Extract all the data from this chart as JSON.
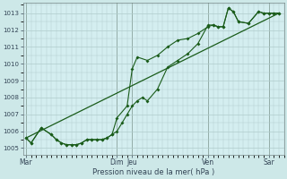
{
  "background_color": "#cde8e8",
  "plot_bg_color": "#d4eef0",
  "grid_color": "#b0cccc",
  "vline_color": "#556655",
  "line_color": "#1a5c1a",
  "xlabel": "Pression niveau de la mer( hPa )",
  "ylim": [
    1004.6,
    1013.6
  ],
  "yticks": [
    1005,
    1006,
    1007,
    1008,
    1009,
    1010,
    1011,
    1012,
    1013
  ],
  "day_labels": [
    "Mar",
    "Dim",
    "Jeu",
    "Ven",
    "Sar"
  ],
  "day_positions": [
    0,
    9,
    10.5,
    18,
    24
  ],
  "xlim": [
    -0.3,
    25.5
  ],
  "total_points": 26,
  "series1_x": [
    0,
    0.5,
    1.5,
    2.5,
    3,
    3.5,
    4,
    4.5,
    5,
    5.5,
    6,
    6.5,
    7,
    7.5,
    8,
    8.5,
    9,
    9.5,
    10,
    10.5,
    11,
    11.5,
    12,
    13,
    14,
    15,
    16,
    17,
    18,
    18.5,
    19,
    19.5,
    20,
    20.5,
    21,
    22,
    23,
    23.5,
    24,
    24.5,
    25
  ],
  "series1_y": [
    1005.6,
    1005.3,
    1006.2,
    1005.8,
    1005.5,
    1005.3,
    1005.2,
    1005.2,
    1005.2,
    1005.3,
    1005.5,
    1005.5,
    1005.5,
    1005.5,
    1005.6,
    1005.8,
    1006.0,
    1006.5,
    1007.0,
    1007.5,
    1007.8,
    1008.0,
    1007.8,
    1008.5,
    1009.8,
    1010.2,
    1010.6,
    1011.2,
    1012.3,
    1012.3,
    1012.2,
    1012.2,
    1013.3,
    1013.1,
    1012.5,
    1012.4,
    1013.1,
    1013.0,
    1013.0,
    1013.0,
    1013.0
  ],
  "series2_x": [
    0,
    0.5,
    1.5,
    2.5,
    3,
    3.5,
    4,
    4.5,
    5,
    5.5,
    6,
    6.5,
    7,
    7.5,
    8,
    8.5,
    9,
    10,
    10.5,
    11,
    12,
    13,
    14,
    15,
    16,
    17,
    18,
    18.5,
    19,
    19.5,
    20,
    20.5,
    21,
    22,
    23,
    23.5,
    24,
    24.5,
    25
  ],
  "series2_y": [
    1005.6,
    1005.3,
    1006.2,
    1005.8,
    1005.5,
    1005.3,
    1005.2,
    1005.2,
    1005.2,
    1005.3,
    1005.5,
    1005.5,
    1005.5,
    1005.5,
    1005.6,
    1005.8,
    1006.8,
    1007.5,
    1009.7,
    1010.4,
    1010.2,
    1010.5,
    1011.0,
    1011.4,
    1011.5,
    1011.8,
    1012.2,
    1012.3,
    1012.2,
    1012.2,
    1013.3,
    1013.1,
    1012.5,
    1012.4,
    1013.1,
    1013.0,
    1013.0,
    1013.0,
    1013.0
  ],
  "trend_x": [
    0,
    25
  ],
  "trend_y": [
    1005.6,
    1013.0
  ]
}
